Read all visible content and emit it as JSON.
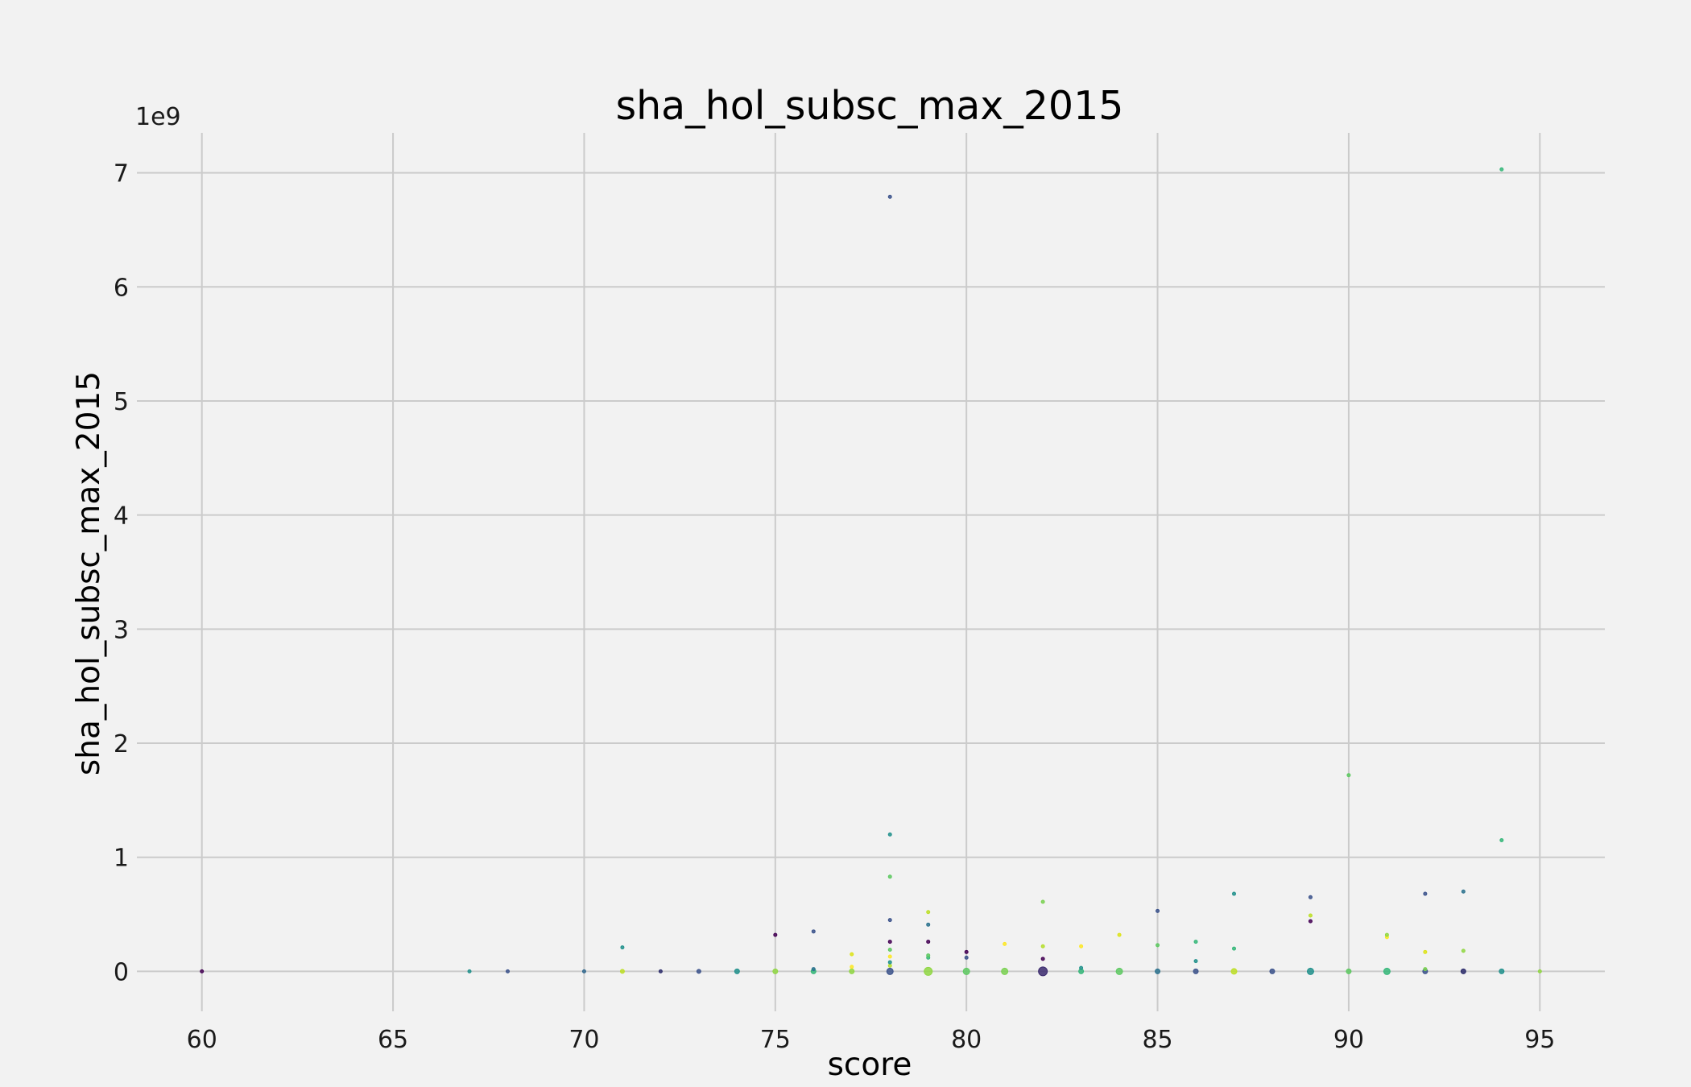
{
  "chart_data": {
    "type": "scatter",
    "title": "sha_hol_subsc_max_2015",
    "xlabel": "score",
    "ylabel": "sha_hol_subsc_max_2015",
    "y_scale_label": "1e9",
    "xlim": [
      58.3,
      96.7
    ],
    "ylim": [
      -0.35,
      7.35
    ],
    "x_ticks": [
      60,
      65,
      70,
      75,
      80,
      85,
      90,
      95
    ],
    "y_ticks": [
      0,
      1,
      2,
      3,
      4,
      5,
      6,
      7
    ],
    "grid": true,
    "colormap": "viridis",
    "points": [
      {
        "x": 60,
        "y": 0.0,
        "c": "#440154",
        "s": 2
      },
      {
        "x": 67,
        "y": 0.0,
        "c": "#21918c",
        "s": 2
      },
      {
        "x": 68,
        "y": 0.0,
        "c": "#3b528b",
        "s": 2
      },
      {
        "x": 70,
        "y": 0.0,
        "c": "#31688e",
        "s": 2
      },
      {
        "x": 71,
        "y": 0.0,
        "c": "#bddf26",
        "s": 2.5
      },
      {
        "x": 71,
        "y": 0.21,
        "c": "#21918c",
        "s": 2
      },
      {
        "x": 72,
        "y": 0.0,
        "c": "#2c2c6b",
        "s": 2
      },
      {
        "x": 73,
        "y": 0.0,
        "c": "#3b528b",
        "s": 2.5
      },
      {
        "x": 74,
        "y": 0.0,
        "c": "#21918c",
        "s": 3
      },
      {
        "x": 75,
        "y": 0.0,
        "c": "#90d743",
        "s": 3
      },
      {
        "x": 75,
        "y": 0.32,
        "c": "#440154",
        "s": 2
      },
      {
        "x": 76,
        "y": 0.0,
        "c": "#35b779",
        "s": 3
      },
      {
        "x": 76,
        "y": 0.02,
        "c": "#2c728e",
        "s": 2
      },
      {
        "x": 76,
        "y": 0.35,
        "c": "#3b528b",
        "s": 2
      },
      {
        "x": 77,
        "y": 0.0,
        "c": "#90d743",
        "s": 3
      },
      {
        "x": 77,
        "y": 0.04,
        "c": "#fde725",
        "s": 2
      },
      {
        "x": 77,
        "y": 0.15,
        "c": "#dde318",
        "s": 2
      },
      {
        "x": 78,
        "y": 0.0,
        "c": "#3b528b",
        "s": 4
      },
      {
        "x": 78,
        "y": 0.05,
        "c": "#b5de2b",
        "s": 2
      },
      {
        "x": 78,
        "y": 0.08,
        "c": "#21918c",
        "s": 2
      },
      {
        "x": 78,
        "y": 0.13,
        "c": "#fde725",
        "s": 2
      },
      {
        "x": 78,
        "y": 0.19,
        "c": "#5ec962",
        "s": 2
      },
      {
        "x": 78,
        "y": 0.26,
        "c": "#440154",
        "s": 2
      },
      {
        "x": 78,
        "y": 0.45,
        "c": "#3b528b",
        "s": 2
      },
      {
        "x": 78,
        "y": 0.83,
        "c": "#5ec962",
        "s": 2
      },
      {
        "x": 78,
        "y": 1.2,
        "c": "#21918c",
        "s": 2
      },
      {
        "x": 78,
        "y": 6.79,
        "c": "#3b528b",
        "s": 2
      },
      {
        "x": 79,
        "y": 0.0,
        "c": "#90d743",
        "s": 5
      },
      {
        "x": 79,
        "y": 0.12,
        "c": "#35b779",
        "s": 2
      },
      {
        "x": 79,
        "y": 0.14,
        "c": "#5ec962",
        "s": 2
      },
      {
        "x": 79,
        "y": 0.26,
        "c": "#440154",
        "s": 2
      },
      {
        "x": 79,
        "y": 0.41,
        "c": "#2c728e",
        "s": 2
      },
      {
        "x": 79,
        "y": 0.52,
        "c": "#bddf26",
        "s": 2
      },
      {
        "x": 80,
        "y": 0.0,
        "c": "#5ec962",
        "s": 4
      },
      {
        "x": 80,
        "y": 0.12,
        "c": "#3b528b",
        "s": 2
      },
      {
        "x": 80,
        "y": 0.17,
        "c": "#440154",
        "s": 2
      },
      {
        "x": 81,
        "y": 0.0,
        "c": "#7ad151",
        "s": 4
      },
      {
        "x": 81,
        "y": 0.24,
        "c": "#fde725",
        "s": 2
      },
      {
        "x": 82,
        "y": 0.0,
        "c": "#3b2a6e",
        "s": 5.5
      },
      {
        "x": 82,
        "y": 0.11,
        "c": "#440154",
        "s": 2
      },
      {
        "x": 82,
        "y": 0.22,
        "c": "#b5de2b",
        "s": 2
      },
      {
        "x": 82,
        "y": 0.61,
        "c": "#7ad151",
        "s": 2
      },
      {
        "x": 83,
        "y": 0.0,
        "c": "#35b779",
        "s": 3
      },
      {
        "x": 83,
        "y": 0.03,
        "c": "#21918c",
        "s": 2
      },
      {
        "x": 83,
        "y": 0.22,
        "c": "#fde725",
        "s": 2
      },
      {
        "x": 84,
        "y": 0.0,
        "c": "#5ec962",
        "s": 4
      },
      {
        "x": 84,
        "y": 0.32,
        "c": "#dde318",
        "s": 2
      },
      {
        "x": 85,
        "y": 0.0,
        "c": "#2c728e",
        "s": 3
      },
      {
        "x": 85,
        "y": 0.23,
        "c": "#5ec962",
        "s": 2
      },
      {
        "x": 85,
        "y": 0.53,
        "c": "#3b528b",
        "s": 2
      },
      {
        "x": 86,
        "y": 0.0,
        "c": "#3b528b",
        "s": 3
      },
      {
        "x": 86,
        "y": 0.09,
        "c": "#21918c",
        "s": 2
      },
      {
        "x": 86,
        "y": 0.26,
        "c": "#35b779",
        "s": 2
      },
      {
        "x": 87,
        "y": 0.0,
        "c": "#bddf26",
        "s": 3.5
      },
      {
        "x": 87,
        "y": 0.2,
        "c": "#35b779",
        "s": 2
      },
      {
        "x": 87,
        "y": 0.68,
        "c": "#21918c",
        "s": 2
      },
      {
        "x": 88,
        "y": 0.0,
        "c": "#3b528b",
        "s": 3
      },
      {
        "x": 89,
        "y": 0.0,
        "c": "#21918c",
        "s": 4
      },
      {
        "x": 89,
        "y": 0.44,
        "c": "#440154",
        "s": 2
      },
      {
        "x": 89,
        "y": 0.49,
        "c": "#bddf26",
        "s": 2
      },
      {
        "x": 89,
        "y": 0.65,
        "c": "#3b528b",
        "s": 2
      },
      {
        "x": 90,
        "y": 0.0,
        "c": "#5ec962",
        "s": 3
      },
      {
        "x": 90,
        "y": 1.72,
        "c": "#5ec962",
        "s": 2
      },
      {
        "x": 91,
        "y": 0.0,
        "c": "#35b779",
        "s": 4
      },
      {
        "x": 91,
        "y": 0.3,
        "c": "#fde725",
        "s": 2
      },
      {
        "x": 91,
        "y": 0.32,
        "c": "#90d743",
        "s": 2
      },
      {
        "x": 92,
        "y": 0.0,
        "c": "#3b528b",
        "s": 3
      },
      {
        "x": 92,
        "y": 0.02,
        "c": "#7ad151",
        "s": 2
      },
      {
        "x": 92,
        "y": 0.17,
        "c": "#dde318",
        "s": 2
      },
      {
        "x": 92,
        "y": 0.68,
        "c": "#3b528b",
        "s": 2
      },
      {
        "x": 93,
        "y": 0.0,
        "c": "#2c2c6b",
        "s": 3
      },
      {
        "x": 93,
        "y": 0.18,
        "c": "#90d743",
        "s": 2
      },
      {
        "x": 93,
        "y": 0.7,
        "c": "#2c728e",
        "s": 2
      },
      {
        "x": 94,
        "y": 0.0,
        "c": "#21918c",
        "s": 3
      },
      {
        "x": 94,
        "y": 1.15,
        "c": "#35b779",
        "s": 2
      },
      {
        "x": 94,
        "y": 7.03,
        "c": "#35b779",
        "s": 2
      },
      {
        "x": 95,
        "y": 0.0,
        "c": "#90d743",
        "s": 2
      }
    ]
  }
}
